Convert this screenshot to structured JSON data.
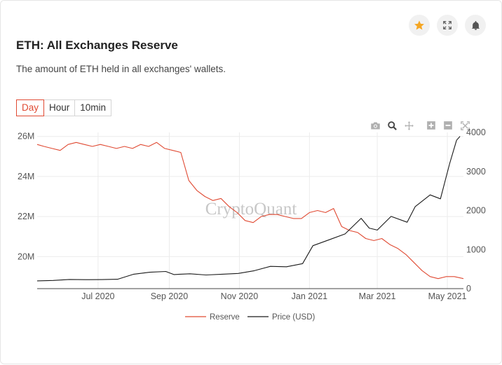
{
  "header": {
    "title": "ETH: All Exchanges Reserve",
    "subtitle": "The amount of ETH held in all exchanges' wallets."
  },
  "icons": {
    "star": "star-icon",
    "expand": "expand-icon",
    "bell": "bell-icon",
    "camera": "camera-icon",
    "zoom": "zoom-icon",
    "pan": "pan-icon",
    "zoom_in": "zoom-in-icon",
    "zoom_out": "zoom-out-icon",
    "autoscale": "autoscale-icon"
  },
  "tabs": [
    {
      "label": "Day",
      "active": true
    },
    {
      "label": "Hour",
      "active": false
    },
    {
      "label": "10min",
      "active": false
    }
  ],
  "watermark": "CryptoQuant",
  "colors": {
    "reserve": "#e04a33",
    "price": "#1a1a1a",
    "star": "#f5a623",
    "accent": "#e04a33"
  },
  "chart_data": {
    "type": "line",
    "x_range": [
      "2020-05-09",
      "2021-05-15"
    ],
    "x_ticks": [
      {
        "label": "Jul 2020",
        "date": "2020-07-01"
      },
      {
        "label": "Sep 2020",
        "date": "2020-09-01"
      },
      {
        "label": "Nov 2020",
        "date": "2020-11-01"
      },
      {
        "label": "Jan 2021",
        "date": "2021-01-01"
      },
      {
        "label": "Mar 2021",
        "date": "2021-03-01"
      },
      {
        "label": "May 2021",
        "date": "2021-05-01"
      }
    ],
    "y_left": {
      "range": [
        18.4,
        26.2
      ],
      "ticks": [
        20,
        22,
        24,
        26
      ],
      "tick_labels": [
        "20M",
        "22M",
        "24M",
        "26M"
      ]
    },
    "y_right": {
      "range": [
        0,
        4000
      ],
      "ticks": [
        0,
        1000,
        2000,
        3000,
        4000
      ],
      "tick_labels": [
        "0",
        "1000",
        "2000",
        "3000",
        "4000"
      ]
    },
    "grid": true,
    "legend_position": "bottom-center",
    "series": [
      {
        "name": "Reserve",
        "axis": "left",
        "unit": "M ETH",
        "points": [
          [
            "2020-05-09",
            25.6
          ],
          [
            "2020-05-15",
            25.5
          ],
          [
            "2020-05-22",
            25.4
          ],
          [
            "2020-05-29",
            25.3
          ],
          [
            "2020-06-05",
            25.6
          ],
          [
            "2020-06-12",
            25.7
          ],
          [
            "2020-06-19",
            25.6
          ],
          [
            "2020-06-26",
            25.5
          ],
          [
            "2020-07-03",
            25.6
          ],
          [
            "2020-07-10",
            25.5
          ],
          [
            "2020-07-17",
            25.4
          ],
          [
            "2020-07-24",
            25.5
          ],
          [
            "2020-07-31",
            25.4
          ],
          [
            "2020-08-07",
            25.6
          ],
          [
            "2020-08-14",
            25.5
          ],
          [
            "2020-08-21",
            25.7
          ],
          [
            "2020-08-28",
            25.4
          ],
          [
            "2020-09-04",
            25.3
          ],
          [
            "2020-09-11",
            25.2
          ],
          [
            "2020-09-18",
            23.8
          ],
          [
            "2020-09-25",
            23.3
          ],
          [
            "2020-10-02",
            23.0
          ],
          [
            "2020-10-09",
            22.8
          ],
          [
            "2020-10-16",
            22.9
          ],
          [
            "2020-10-23",
            22.5
          ],
          [
            "2020-10-30",
            22.2
          ],
          [
            "2020-11-06",
            21.8
          ],
          [
            "2020-11-13",
            21.7
          ],
          [
            "2020-11-20",
            22.0
          ],
          [
            "2020-11-27",
            22.1
          ],
          [
            "2020-12-04",
            22.1
          ],
          [
            "2020-12-11",
            22.0
          ],
          [
            "2020-12-18",
            21.9
          ],
          [
            "2020-12-25",
            21.9
          ],
          [
            "2021-01-01",
            22.2
          ],
          [
            "2021-01-08",
            22.3
          ],
          [
            "2021-01-15",
            22.2
          ],
          [
            "2021-01-22",
            22.4
          ],
          [
            "2021-01-29",
            21.5
          ],
          [
            "2021-02-05",
            21.3
          ],
          [
            "2021-02-12",
            21.2
          ],
          [
            "2021-02-19",
            20.9
          ],
          [
            "2021-02-26",
            20.8
          ],
          [
            "2021-03-05",
            20.9
          ],
          [
            "2021-03-12",
            20.6
          ],
          [
            "2021-03-19",
            20.4
          ],
          [
            "2021-03-26",
            20.1
          ],
          [
            "2021-04-02",
            19.7
          ],
          [
            "2021-04-09",
            19.3
          ],
          [
            "2021-04-16",
            19.0
          ],
          [
            "2021-04-23",
            18.9
          ],
          [
            "2021-04-30",
            19.0
          ],
          [
            "2021-05-07",
            19.0
          ],
          [
            "2021-05-15",
            18.9
          ]
        ]
      },
      {
        "name": "Price (USD)",
        "axis": "right",
        "unit": "USD",
        "points": [
          [
            "2020-05-09",
            200
          ],
          [
            "2020-05-23",
            210
          ],
          [
            "2020-06-06",
            235
          ],
          [
            "2020-06-20",
            230
          ],
          [
            "2020-07-04",
            232
          ],
          [
            "2020-07-18",
            240
          ],
          [
            "2020-08-01",
            370
          ],
          [
            "2020-08-15",
            420
          ],
          [
            "2020-08-29",
            440
          ],
          [
            "2020-09-05",
            360
          ],
          [
            "2020-09-19",
            380
          ],
          [
            "2020-10-03",
            350
          ],
          [
            "2020-10-17",
            370
          ],
          [
            "2020-10-31",
            390
          ],
          [
            "2020-11-14",
            460
          ],
          [
            "2020-11-28",
            570
          ],
          [
            "2020-12-12",
            560
          ],
          [
            "2020-12-26",
            640
          ],
          [
            "2021-01-04",
            1100
          ],
          [
            "2021-01-18",
            1250
          ],
          [
            "2021-02-01",
            1400
          ],
          [
            "2021-02-15",
            1800
          ],
          [
            "2021-02-22",
            1550
          ],
          [
            "2021-03-01",
            1500
          ],
          [
            "2021-03-13",
            1850
          ],
          [
            "2021-03-27",
            1700
          ],
          [
            "2021-04-03",
            2100
          ],
          [
            "2021-04-16",
            2400
          ],
          [
            "2021-04-25",
            2300
          ],
          [
            "2021-05-03",
            3200
          ],
          [
            "2021-05-09",
            3800
          ],
          [
            "2021-05-12",
            3900
          ]
        ]
      }
    ]
  }
}
